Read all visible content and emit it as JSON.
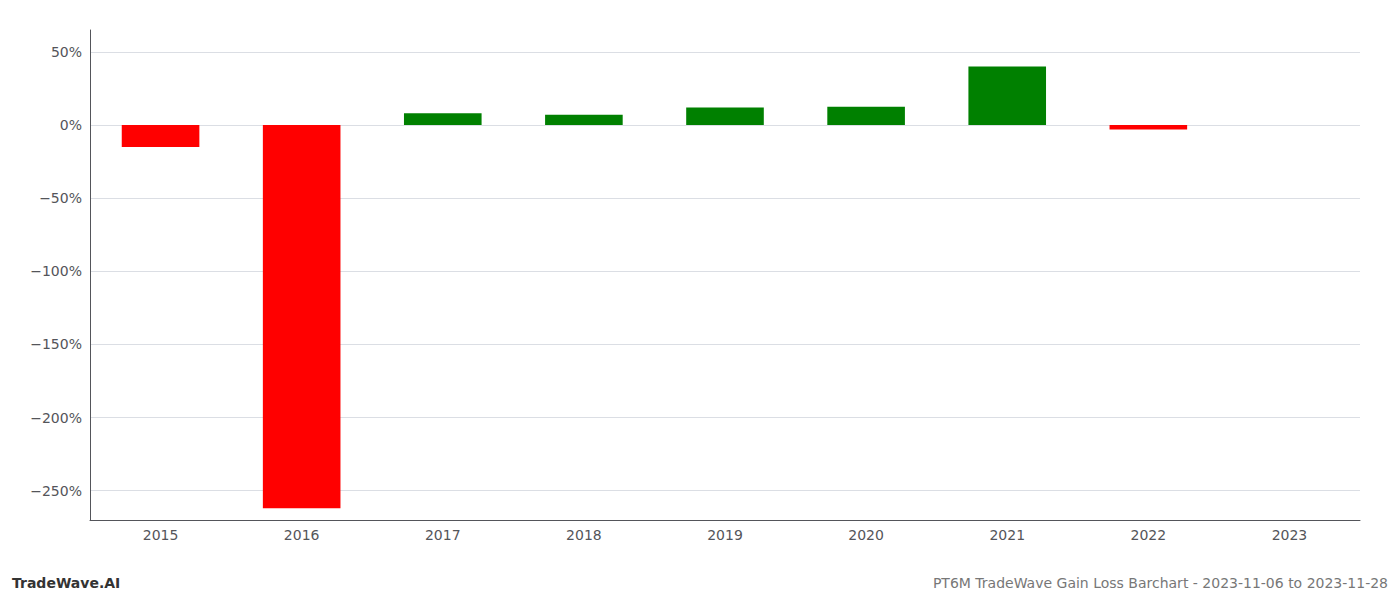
{
  "chart_data": {
    "type": "bar",
    "categories": [
      "2015",
      "2016",
      "2017",
      "2018",
      "2019",
      "2020",
      "2021",
      "2022",
      "2023"
    ],
    "values": [
      -15.0,
      -262.0,
      8.0,
      7.0,
      12.0,
      12.5,
      40.0,
      -3.0,
      null
    ],
    "colors": [
      "#ff0000",
      "#ff0000",
      "#008000",
      "#008000",
      "#008000",
      "#008000",
      "#008000",
      "#ff0000",
      null
    ],
    "ylim": [
      -270,
      65
    ],
    "yticks": [
      {
        "value": 50,
        "label": "50%"
      },
      {
        "value": 0,
        "label": "0%"
      },
      {
        "value": -50,
        "label": "−50%"
      },
      {
        "value": -100,
        "label": "−100%"
      },
      {
        "value": -150,
        "label": "−150%"
      },
      {
        "value": -200,
        "label": "−200%"
      },
      {
        "value": -250,
        "label": "−250%"
      }
    ],
    "grid": true,
    "annotations": [
      "TradeWave.AI",
      "PT6M TradeWave Gain Loss Barchart - 2023-11-06 to 2023-11-28"
    ]
  }
}
